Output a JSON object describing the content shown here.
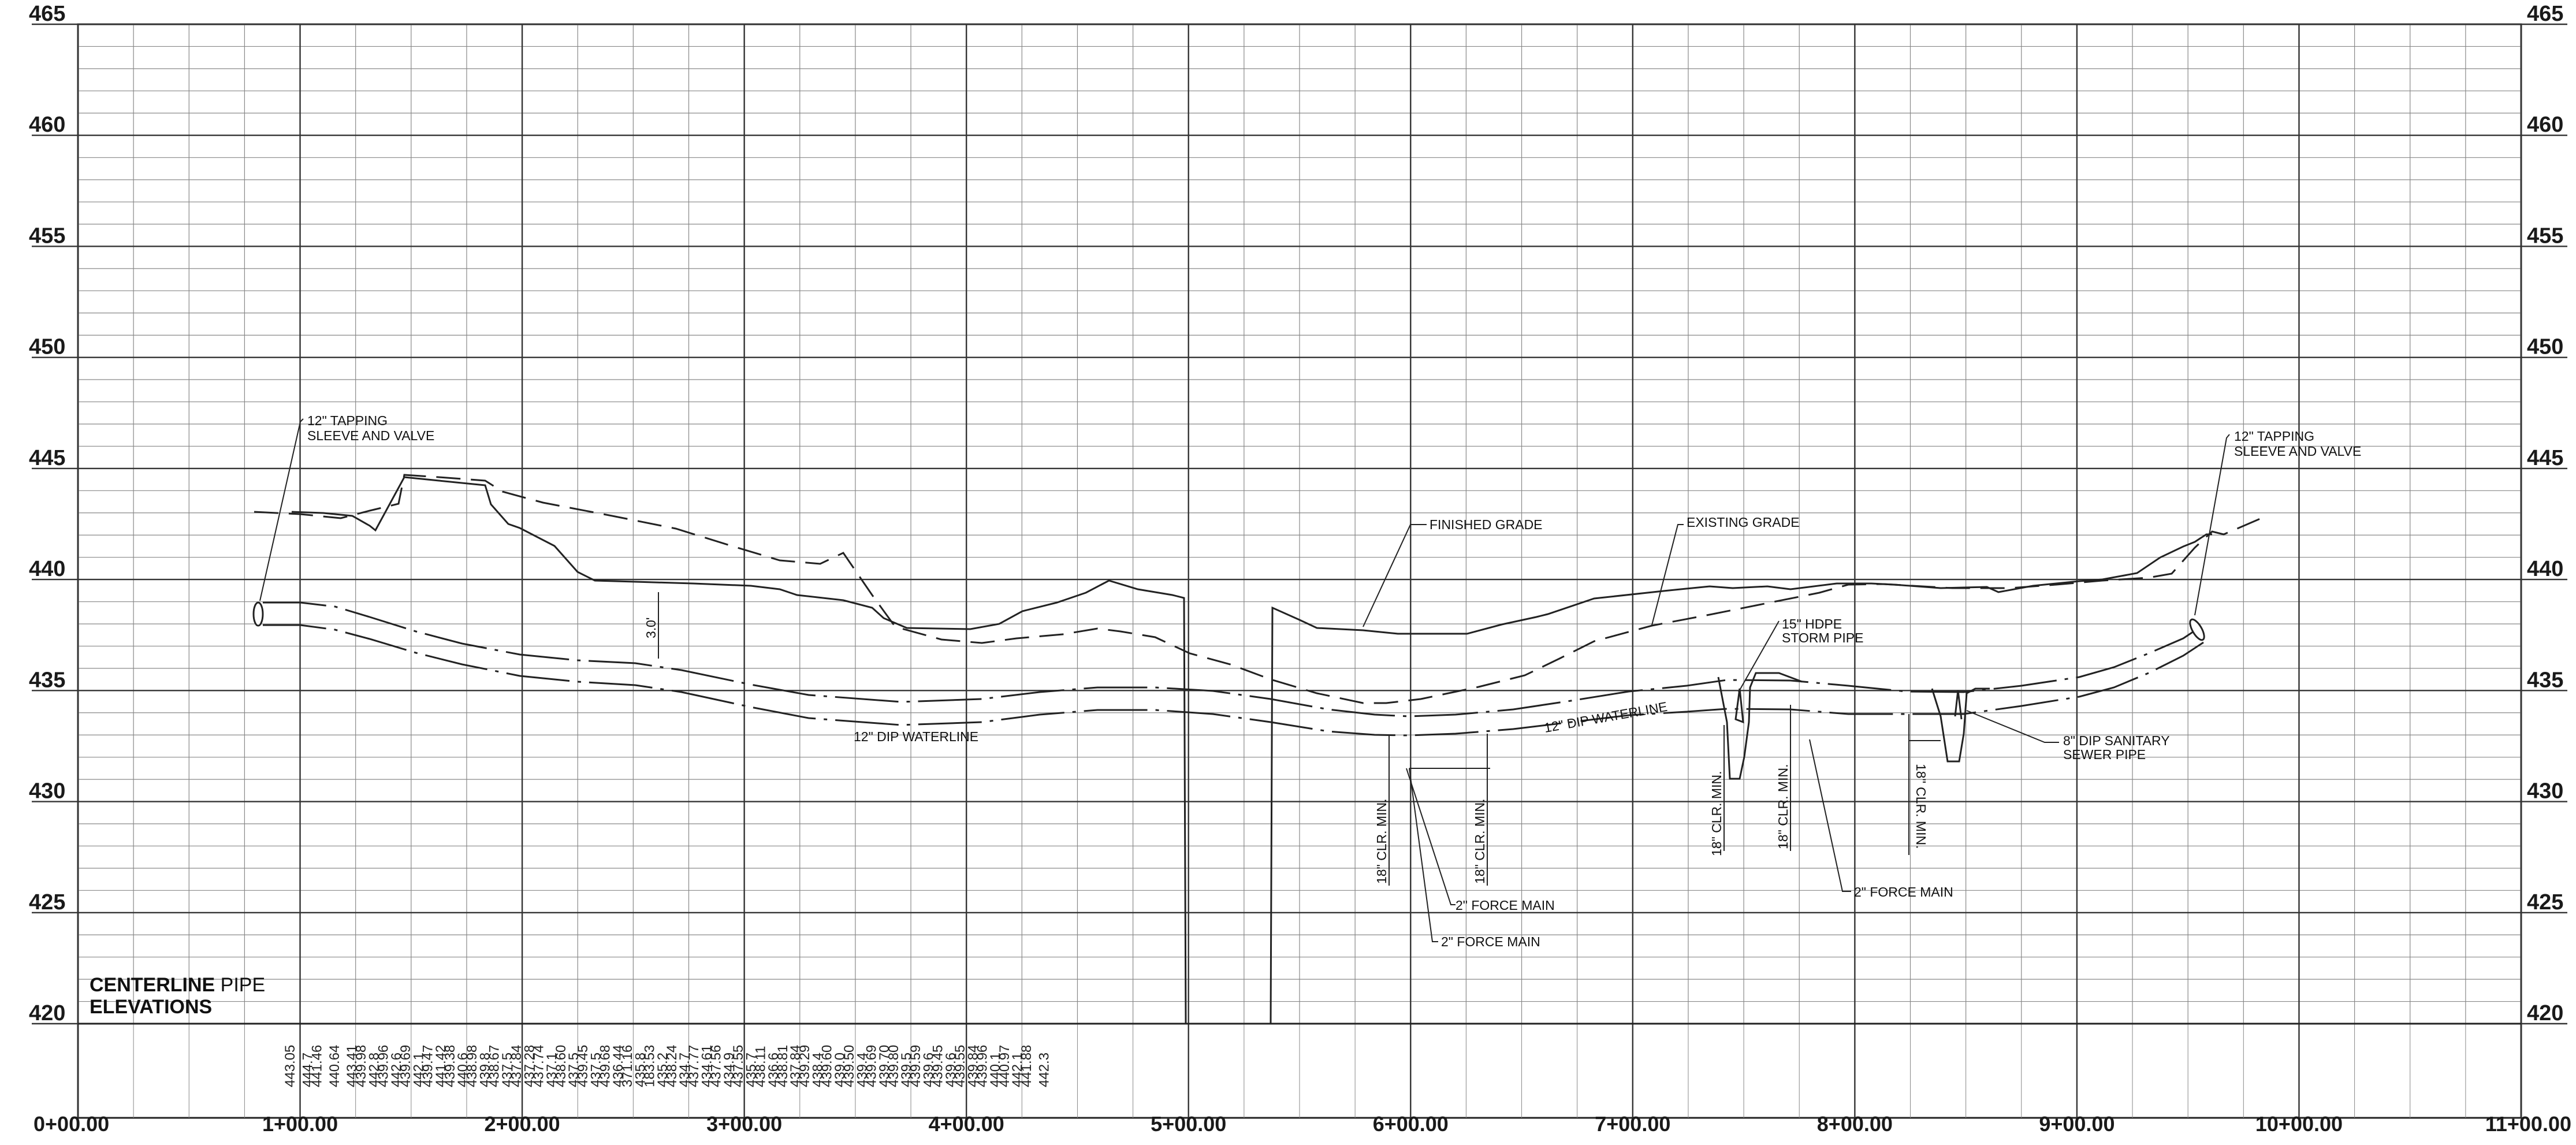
{
  "title": {
    "line1_bold": "CENTERLINE",
    "line1_rest": " PIPE",
    "line2": "ELEVATIONS"
  },
  "elevation_labels": [
    "465",
    "460",
    "455",
    "450",
    "445",
    "440",
    "435",
    "430",
    "425",
    "420"
  ],
  "station_labels": [
    "0+00.00",
    "1+00.00",
    "2+00.00",
    "3+00.00",
    "4+00.00",
    "5+00.00",
    "6+00.00",
    "7+00.00",
    "8+00.00",
    "9+00.00",
    "10+00.00",
    "11+00.00"
  ],
  "annotations": {
    "tap_left_1": "12\" TAPPING",
    "tap_left_2": "SLEEVE AND VALVE",
    "tap_right_1": "12\" TAPPING",
    "tap_right_2": "SLEEVE AND VALVE",
    "finished_grade": "FINISHED GRADE",
    "existing_grade": "EXISTING GRADE",
    "storm_1": "15\" HDPE",
    "storm_2": "STORM PIPE",
    "sanitary_1": "8\" DIP SANITARY",
    "sanitary_2": "SEWER PIPE",
    "waterline_left": "12\" DIP WATERLINE",
    "waterline_right": "12\" DIP WATERLINE",
    "cover": "3.0'",
    "clr_a": "18\" CLR. MIN.",
    "clr_b": "18\" CLR. MIN.",
    "clr_c": "18\" CLR. MIN.",
    "clr_d": "18\" CLR. MIN.",
    "clr_e": "18\" CLR. MIN.",
    "force_main_a": "2\" FORCE MAIN",
    "force_main_b": "2\" FORCE MAIN",
    "force_main_c": "2\" FORCE MAIN"
  },
  "bottom_values": [
    [
      "443.05"
    ],
    [
      "444.7",
      "441.46"
    ],
    [
      "440.64"
    ],
    [
      "443.41",
      "439.98"
    ],
    [
      "442.8",
      "439.96"
    ],
    [
      "442.6",
      "439.69"
    ],
    [
      "442.1",
      "439.47"
    ],
    [
      "441.42",
      "439.38"
    ],
    [
      "440.6",
      "438.98"
    ],
    [
      "439.8",
      "438.67"
    ],
    [
      "437.5",
      "437.84"
    ],
    [
      "437.28",
      "437.74"
    ],
    [
      "437.1",
      "438.60"
    ],
    [
      "437.5",
      "439.45"
    ],
    [
      "437.5",
      "439.68"
    ],
    [
      "436.44",
      "371.16"
    ],
    [
      "435.8",
      "183.53"
    ],
    [
      "435.2",
      "438.24"
    ],
    [
      "434.7",
      "437.77"
    ],
    [
      "434.61",
      "437.56"
    ],
    [
      "434.9",
      "437.55"
    ],
    [
      "435.7",
      "438.11"
    ],
    [
      "436.6",
      "438.81"
    ],
    [
      "437.84",
      "439.29"
    ],
    [
      "438.4",
      "439.60"
    ],
    [
      "439.0",
      "439.50"
    ],
    [
      "439.4",
      "439.69"
    ],
    [
      "439.70",
      "439.80"
    ],
    [
      "439.5",
      "439.59"
    ],
    [
      "439.6",
      "439.45"
    ],
    [
      "439.6",
      "439.55"
    ],
    [
      "439.84",
      "439.96"
    ],
    [
      "440.1",
      "440.97"
    ],
    [
      "442.1",
      "441.88"
    ],
    [
      "442.3"
    ]
  ]
}
